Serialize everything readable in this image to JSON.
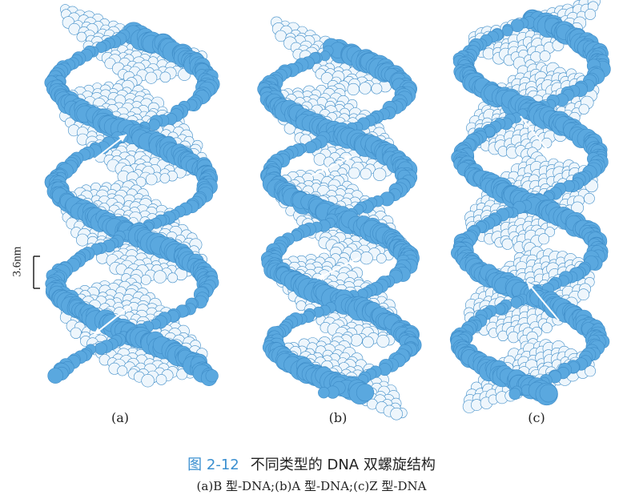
{
  "figure": {
    "number": "图 2-12",
    "title": "不同类型的 DNA 双螺旋结构",
    "subcaption": "(a)B 型-DNA;(b)A 型-DNA;(c)Z 型-DNA",
    "panel_labels": [
      "(a)",
      "(b)",
      "(c)"
    ],
    "scale_bar_label": "3.6nm"
  },
  "colors": {
    "backbone_blue": "#5aa8df",
    "backbone_dark": "#3f8dc8",
    "base_white": "#eef6fc",
    "caption_number": "#3a8fd0",
    "text": "#222222"
  },
  "panels": [
    {
      "id": "a",
      "form": "B-DNA",
      "description_icon": "dna-double-helix-icon"
    },
    {
      "id": "b",
      "form": "A-DNA",
      "description_icon": "dna-double-helix-icon"
    },
    {
      "id": "c",
      "form": "Z-DNA",
      "description_icon": "dna-double-helix-icon"
    }
  ]
}
